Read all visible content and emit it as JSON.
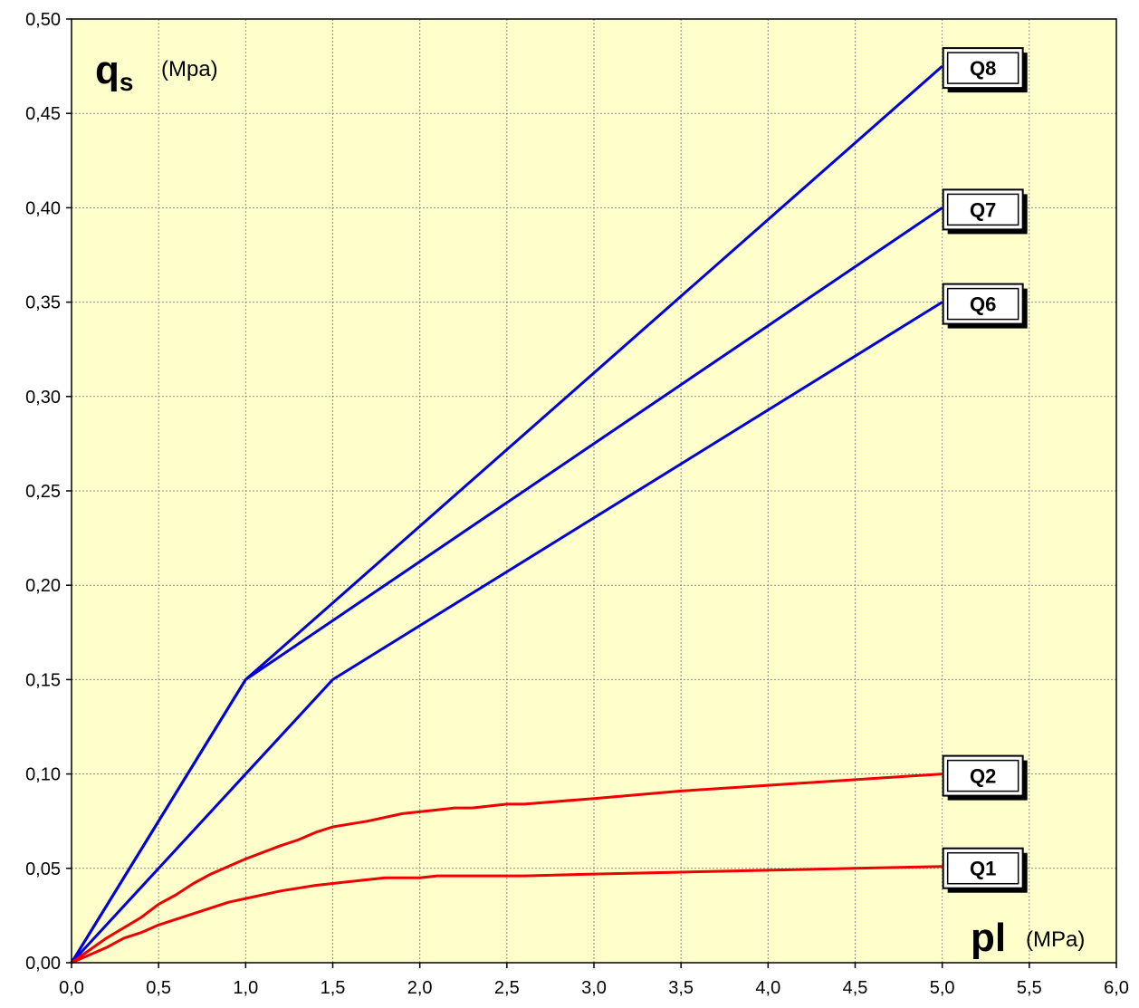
{
  "chart_data": {
    "type": "line",
    "x_axis": {
      "symbol": "pl",
      "unit": "(MPa)",
      "lim": [
        0,
        6
      ],
      "ticks": [
        "0,0",
        "0,5",
        "1,0",
        "1,5",
        "2,0",
        "2,5",
        "3,0",
        "3,5",
        "4,0",
        "4,5",
        "5,0",
        "5,5",
        "6,0"
      ]
    },
    "y_axis": {
      "symbol": "q",
      "subscript": "s",
      "unit": "(Mpa)",
      "lim": [
        0,
        0.5
      ],
      "ticks": [
        "0,00",
        "0,05",
        "0,10",
        "0,15",
        "0,20",
        "0,25",
        "0,30",
        "0,35",
        "0,40",
        "0,45",
        "0,50"
      ]
    },
    "grid": true,
    "plot_background": "#FFFFCC",
    "series": [
      {
        "name": "Q8",
        "color": "#0000DD",
        "points": [
          [
            0,
            0
          ],
          [
            1.0,
            0.15
          ],
          [
            5.0,
            0.475
          ]
        ]
      },
      {
        "name": "Q7",
        "color": "#0000DD",
        "points": [
          [
            0,
            0
          ],
          [
            1.0,
            0.15
          ],
          [
            5.0,
            0.4
          ]
        ]
      },
      {
        "name": "Q6",
        "color": "#0000DD",
        "points": [
          [
            0,
            0
          ],
          [
            1.5,
            0.15
          ],
          [
            5.0,
            0.35
          ]
        ]
      },
      {
        "name": "Q2",
        "color": "#EE0000",
        "points": [
          [
            0,
            0
          ],
          [
            0.2,
            0.013
          ],
          [
            0.4,
            0.024
          ],
          [
            0.5,
            0.031
          ],
          [
            0.6,
            0.036
          ],
          [
            0.7,
            0.042
          ],
          [
            0.8,
            0.047
          ],
          [
            0.9,
            0.051
          ],
          [
            1.0,
            0.055
          ],
          [
            1.2,
            0.062
          ],
          [
            1.3,
            0.065
          ],
          [
            1.4,
            0.069
          ],
          [
            1.5,
            0.072
          ],
          [
            1.7,
            0.075
          ],
          [
            1.9,
            0.079
          ],
          [
            2.1,
            0.081
          ],
          [
            2.2,
            0.082
          ],
          [
            2.3,
            0.082
          ],
          [
            2.5,
            0.084
          ],
          [
            2.6,
            0.084
          ],
          [
            3.0,
            0.087
          ],
          [
            3.5,
            0.091
          ],
          [
            4.0,
            0.094
          ],
          [
            4.5,
            0.097
          ],
          [
            5.0,
            0.1
          ]
        ]
      },
      {
        "name": "Q1",
        "color": "#EE0000",
        "points": [
          [
            0,
            0
          ],
          [
            0.2,
            0.008
          ],
          [
            0.3,
            0.013
          ],
          [
            0.4,
            0.016
          ],
          [
            0.5,
            0.02
          ],
          [
            0.6,
            0.023
          ],
          [
            0.7,
            0.026
          ],
          [
            0.8,
            0.029
          ],
          [
            0.9,
            0.032
          ],
          [
            1.0,
            0.034
          ],
          [
            1.2,
            0.038
          ],
          [
            1.4,
            0.041
          ],
          [
            1.6,
            0.043
          ],
          [
            1.8,
            0.045
          ],
          [
            2.0,
            0.045
          ],
          [
            2.1,
            0.046
          ],
          [
            2.5,
            0.046
          ],
          [
            2.6,
            0.046
          ],
          [
            3.0,
            0.047
          ],
          [
            3.5,
            0.048
          ],
          [
            4.0,
            0.049
          ],
          [
            4.5,
            0.05
          ],
          [
            5.0,
            0.051
          ]
        ]
      }
    ]
  }
}
